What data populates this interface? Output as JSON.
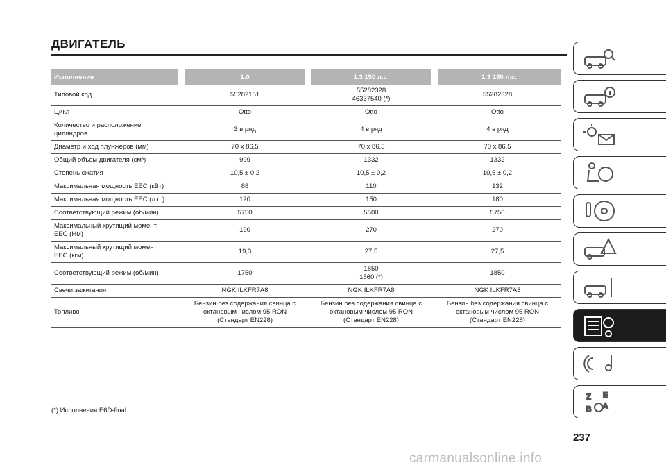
{
  "page_title": "ДВИГАТЕЛЬ",
  "table": {
    "headers": [
      "Исполнение",
      "1.0",
      "1.3 150 л.с.",
      "1.3 180 л.с."
    ],
    "rows": [
      {
        "label": "Типовой код",
        "values": [
          "55282151",
          "55282328\n46337540 (*)",
          "55282328"
        ]
      },
      {
        "label": "Цикл",
        "values": [
          "Otto",
          "Otto",
          "Otto"
        ]
      },
      {
        "label": "Количество и расположение\nцилиндров",
        "values": [
          "3 в ряд",
          "4 в ряд",
          "4 в ряд"
        ]
      },
      {
        "label": "Диаметр и ход плунжеров (мм)",
        "values": [
          "70 x 86,5",
          "70 x 86,5",
          "70 x 86,5"
        ]
      },
      {
        "label": "Общий объем двигателя (см³)",
        "values": [
          "999",
          "1332",
          "1332"
        ]
      },
      {
        "label": "Степень сжатия",
        "values": [
          "10,5 ± 0,2",
          "10,5 ± 0,2",
          "10,5 ± 0,2"
        ]
      },
      {
        "label": "Максимальная мощность ЕЕС (кВт)",
        "values": [
          "88",
          "110",
          "132"
        ]
      },
      {
        "label": "Максимальная мощность ЕЕС (л.с.)",
        "values": [
          "120",
          "150",
          "180"
        ]
      },
      {
        "label": "Соответствующий режим (об/мин)",
        "values": [
          "5750",
          "5500",
          "5750"
        ]
      },
      {
        "label": "Максимальный крутящий момент\nЕЕС (Нм)",
        "values": [
          "190",
          "270",
          "270"
        ]
      },
      {
        "label": "Максимальный крутящий момент\nЕЕС (кгм)",
        "values": [
          "19,3",
          "27,5",
          "27,5"
        ]
      },
      {
        "label": "Соответствующий режим (об/мин)",
        "values": [
          "1750",
          "1850\n1560 (*)",
          "1850"
        ]
      },
      {
        "label": "Свечи зажигания",
        "values": [
          "NGK ILKFR7A8",
          "NGK ILKFR7A8",
          "NGK ILKFR7A8"
        ]
      },
      {
        "label": "Топливо",
        "values": [
          "Бензин без содержания свинца с\nоктановым числом 95 RON\n(Стандарт EN228)",
          "Бензин без содержания свинца с\nоктановым числом 95 RON\n(Стандарт EN228)",
          "Бензин без содержания свинца с\nоктановым числом 95 RON\n(Стандарт EN228)"
        ]
      }
    ]
  },
  "footnote": "(*) Исполнения E6D-final",
  "page_number": "237",
  "watermark": "carmanualsonline.info",
  "sidebar_tabs": [
    {
      "icon": "car-search-icon",
      "active": false
    },
    {
      "icon": "car-info-icon",
      "active": false
    },
    {
      "icon": "warning-lights-icon",
      "active": false
    },
    {
      "icon": "airbag-seat-icon",
      "active": false
    },
    {
      "icon": "steering-wheel-icon",
      "active": false
    },
    {
      "icon": "car-warning-icon",
      "active": false
    },
    {
      "icon": "car-tools-icon",
      "active": false
    },
    {
      "icon": "specifications-gear-icon",
      "active": true
    },
    {
      "icon": "multimedia-icon",
      "active": false
    },
    {
      "icon": "alphabetical-index-icon",
      "active": false
    }
  ],
  "colors": {
    "header_bg": "#b4b4b4",
    "active_tab": "#1c1c1c"
  }
}
